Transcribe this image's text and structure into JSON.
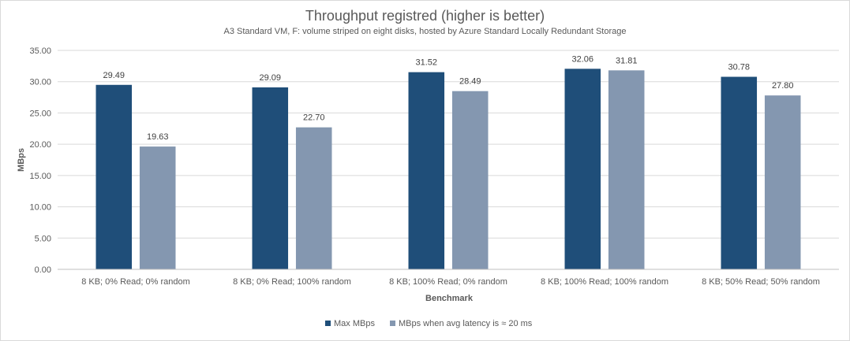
{
  "chart_data": {
    "type": "bar",
    "title": "Throughput registred (higher is better)",
    "subtitle": "A3 Standard VM, F: volume striped on eight disks, hosted by Azure Standard Locally Redundant Storage",
    "xlabel": "Benchmark",
    "ylabel": "MBps",
    "ylim": [
      0,
      35
    ],
    "yticks": [
      "0.00",
      "5.00",
      "10.00",
      "15.00",
      "20.00",
      "25.00",
      "30.00",
      "35.00"
    ],
    "grid": true,
    "legend_position": "bottom",
    "categories": [
      "8 KB; 0% Read; 0% random",
      "8 KB; 0% Read; 100% random",
      "8 KB; 100% Read; 0% random",
      "8 KB; 100% Read; 100% random",
      "8 KB; 50% Read; 50% random"
    ],
    "series": [
      {
        "name": "Max MBps",
        "color": "#1f4e79",
        "values": [
          29.49,
          29.09,
          31.52,
          32.06,
          30.78
        ],
        "labels": [
          "29.49",
          "29.09",
          "31.52",
          "32.06",
          "30.78"
        ]
      },
      {
        "name": "MBps when avg latency is ≈ 20 ms",
        "color": "#8497b0",
        "values": [
          19.63,
          22.7,
          28.49,
          31.81,
          27.8
        ],
        "labels": [
          "19.63",
          "22.70",
          "28.49",
          "31.81",
          "27.80"
        ]
      }
    ]
  }
}
